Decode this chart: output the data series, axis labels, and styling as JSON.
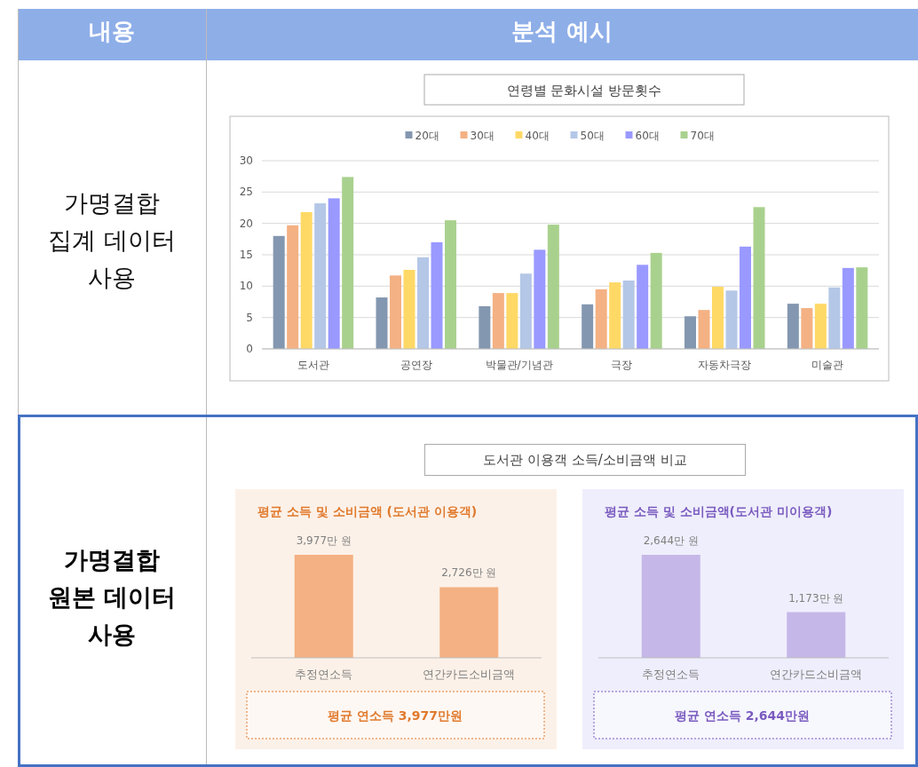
{
  "chart_data": [
    {
      "type": "bar",
      "title": "연령별 문화시설 방문횟수",
      "categories": [
        "도서관",
        "공연장",
        "박물관/기념관",
        "극장",
        "자동차극장",
        "미술관"
      ],
      "ylim": [
        0,
        30
      ],
      "yticks": [
        0,
        5,
        10,
        15,
        20,
        25,
        30
      ],
      "grid": "y",
      "legend": "top",
      "series": [
        {
          "name": "20대",
          "color": "#8497b0",
          "values": [
            18.0,
            8.2,
            6.8,
            7.1,
            5.2,
            7.2
          ]
        },
        {
          "name": "30대",
          "color": "#f4b183",
          "values": [
            19.7,
            11.7,
            8.9,
            9.5,
            6.2,
            6.5
          ]
        },
        {
          "name": "40대",
          "color": "#ffd966",
          "values": [
            21.8,
            12.6,
            8.9,
            10.6,
            9.9,
            7.2
          ]
        },
        {
          "name": "50대",
          "color": "#b4c7e7",
          "values": [
            23.2,
            14.6,
            12.0,
            10.9,
            9.3,
            9.8
          ]
        },
        {
          "name": "60대",
          "color": "#9999ff",
          "values": [
            24.0,
            17.0,
            15.8,
            13.4,
            16.3,
            12.9
          ]
        },
        {
          "name": "70대",
          "color": "#a9d18e",
          "values": [
            27.4,
            20.5,
            19.8,
            15.3,
            22.6,
            13.0
          ]
        }
      ]
    },
    {
      "type": "bar",
      "title": "평균 소득 및 소비금액  (도서관 이용객)",
      "categories": [
        "추정연소득",
        "연간카드소비금액"
      ],
      "values": [
        3977,
        2726
      ],
      "value_labels": [
        "3,977만 원",
        "2,726만 원"
      ],
      "color": "#f4b183",
      "annotations": [
        "평균 연소득 3,977만원"
      ]
    },
    {
      "type": "bar",
      "title": "평균 소득 및 소비금액(도서관 미이용객)",
      "categories": [
        "추정연소득",
        "연간카드소비금액"
      ],
      "values": [
        2644,
        1173
      ],
      "value_labels": [
        "2,644만 원",
        "1,173만 원"
      ],
      "color": "#c5b8e8",
      "annotations": [
        "평균 연소득 2,644만원"
      ]
    },
    {
      "type": "other",
      "annotations": [
        "내용",
        "분석 예시",
        "가명결합 집계 데이터 사용",
        "가명결합 원본 데이터 사용",
        "도서관 이용객 소득/소비금액 비교"
      ]
    }
  ]
}
